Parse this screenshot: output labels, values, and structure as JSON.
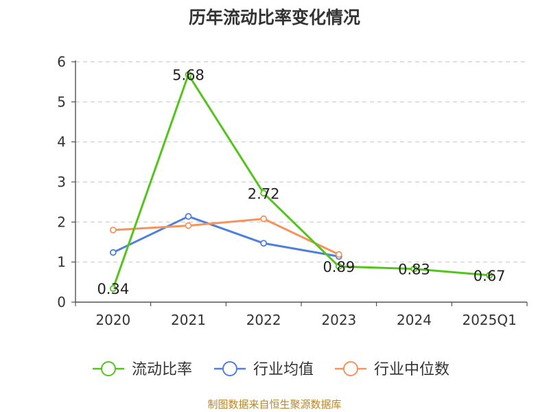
{
  "chart_data": {
    "type": "line",
    "title": "历年流动比率变化情况",
    "categories": [
      "2020",
      "2021",
      "2022",
      "2023",
      "2024",
      "2025Q1"
    ],
    "ylim": [
      0,
      6
    ],
    "yticks": [
      "0",
      "1",
      "2",
      "3",
      "4",
      "5",
      "6"
    ],
    "grid": true,
    "legend_position": "bottom",
    "series": [
      {
        "name": "流动比率",
        "color": "#52c41a",
        "values": [
          0.34,
          5.68,
          2.72,
          0.89,
          0.83,
          0.67
        ],
        "labels": [
          "0.34",
          "5.68",
          "2.72",
          "0.89",
          "0.83",
          "0.67"
        ]
      },
      {
        "name": "行业均值",
        "color": "#4e7fdb",
        "values": [
          1.24,
          2.14,
          1.47,
          1.14,
          null,
          null
        ]
      },
      {
        "name": "行业中位数",
        "color": "#f5935c",
        "values": [
          1.8,
          1.91,
          2.08,
          1.19,
          null,
          null
        ]
      }
    ]
  },
  "footer": {
    "source": "制图数据来自恒生聚源数据库"
  }
}
